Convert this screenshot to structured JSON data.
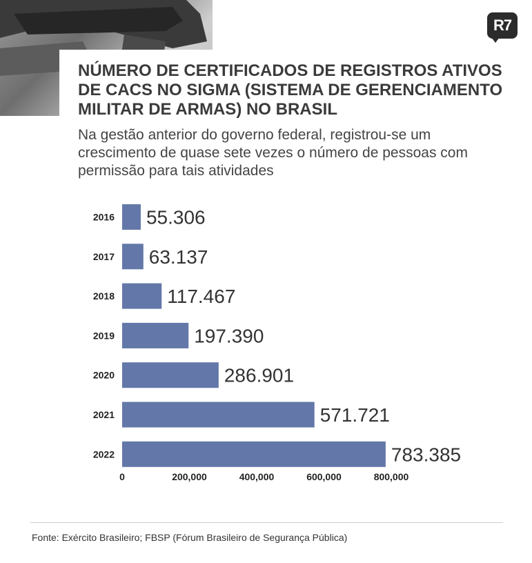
{
  "brand": {
    "logo_text": "R7"
  },
  "header": {
    "title": "NÚMERO DE CERTIFICADOS DE REGISTROS ATIVOS DE CACS NO SIGMA (SISTEMA DE GERENCIAMENTO MILITAR DE ARMAS) NO BRASIL",
    "subtitle": "Na gestão anterior do governo federal, registrou-se um crescimento de quase sete vezes o número de pessoas com permissão para tais atividades"
  },
  "chart_data": {
    "type": "bar",
    "orientation": "horizontal",
    "categories": [
      "2016",
      "2017",
      "2018",
      "2019",
      "2020",
      "2021",
      "2022"
    ],
    "values": [
      55306,
      63137,
      117467,
      197390,
      286901,
      571721,
      783385
    ],
    "value_labels": [
      "55.306",
      "63.137",
      "117.467",
      "197.390",
      "286.901",
      "571.721",
      "783.385"
    ],
    "xlim": [
      0,
      800000
    ],
    "x_ticks": [
      0,
      200000,
      400000,
      600000,
      800000
    ],
    "x_tick_labels": [
      "0",
      "200,000",
      "400,000",
      "600,000",
      "800,000"
    ],
    "bar_color": "#6378a8",
    "grid": false
  },
  "footer": {
    "source": "Fonte: Exército Brasileiro; FBSP (Fórum Brasileiro de Segurança Pública)"
  }
}
